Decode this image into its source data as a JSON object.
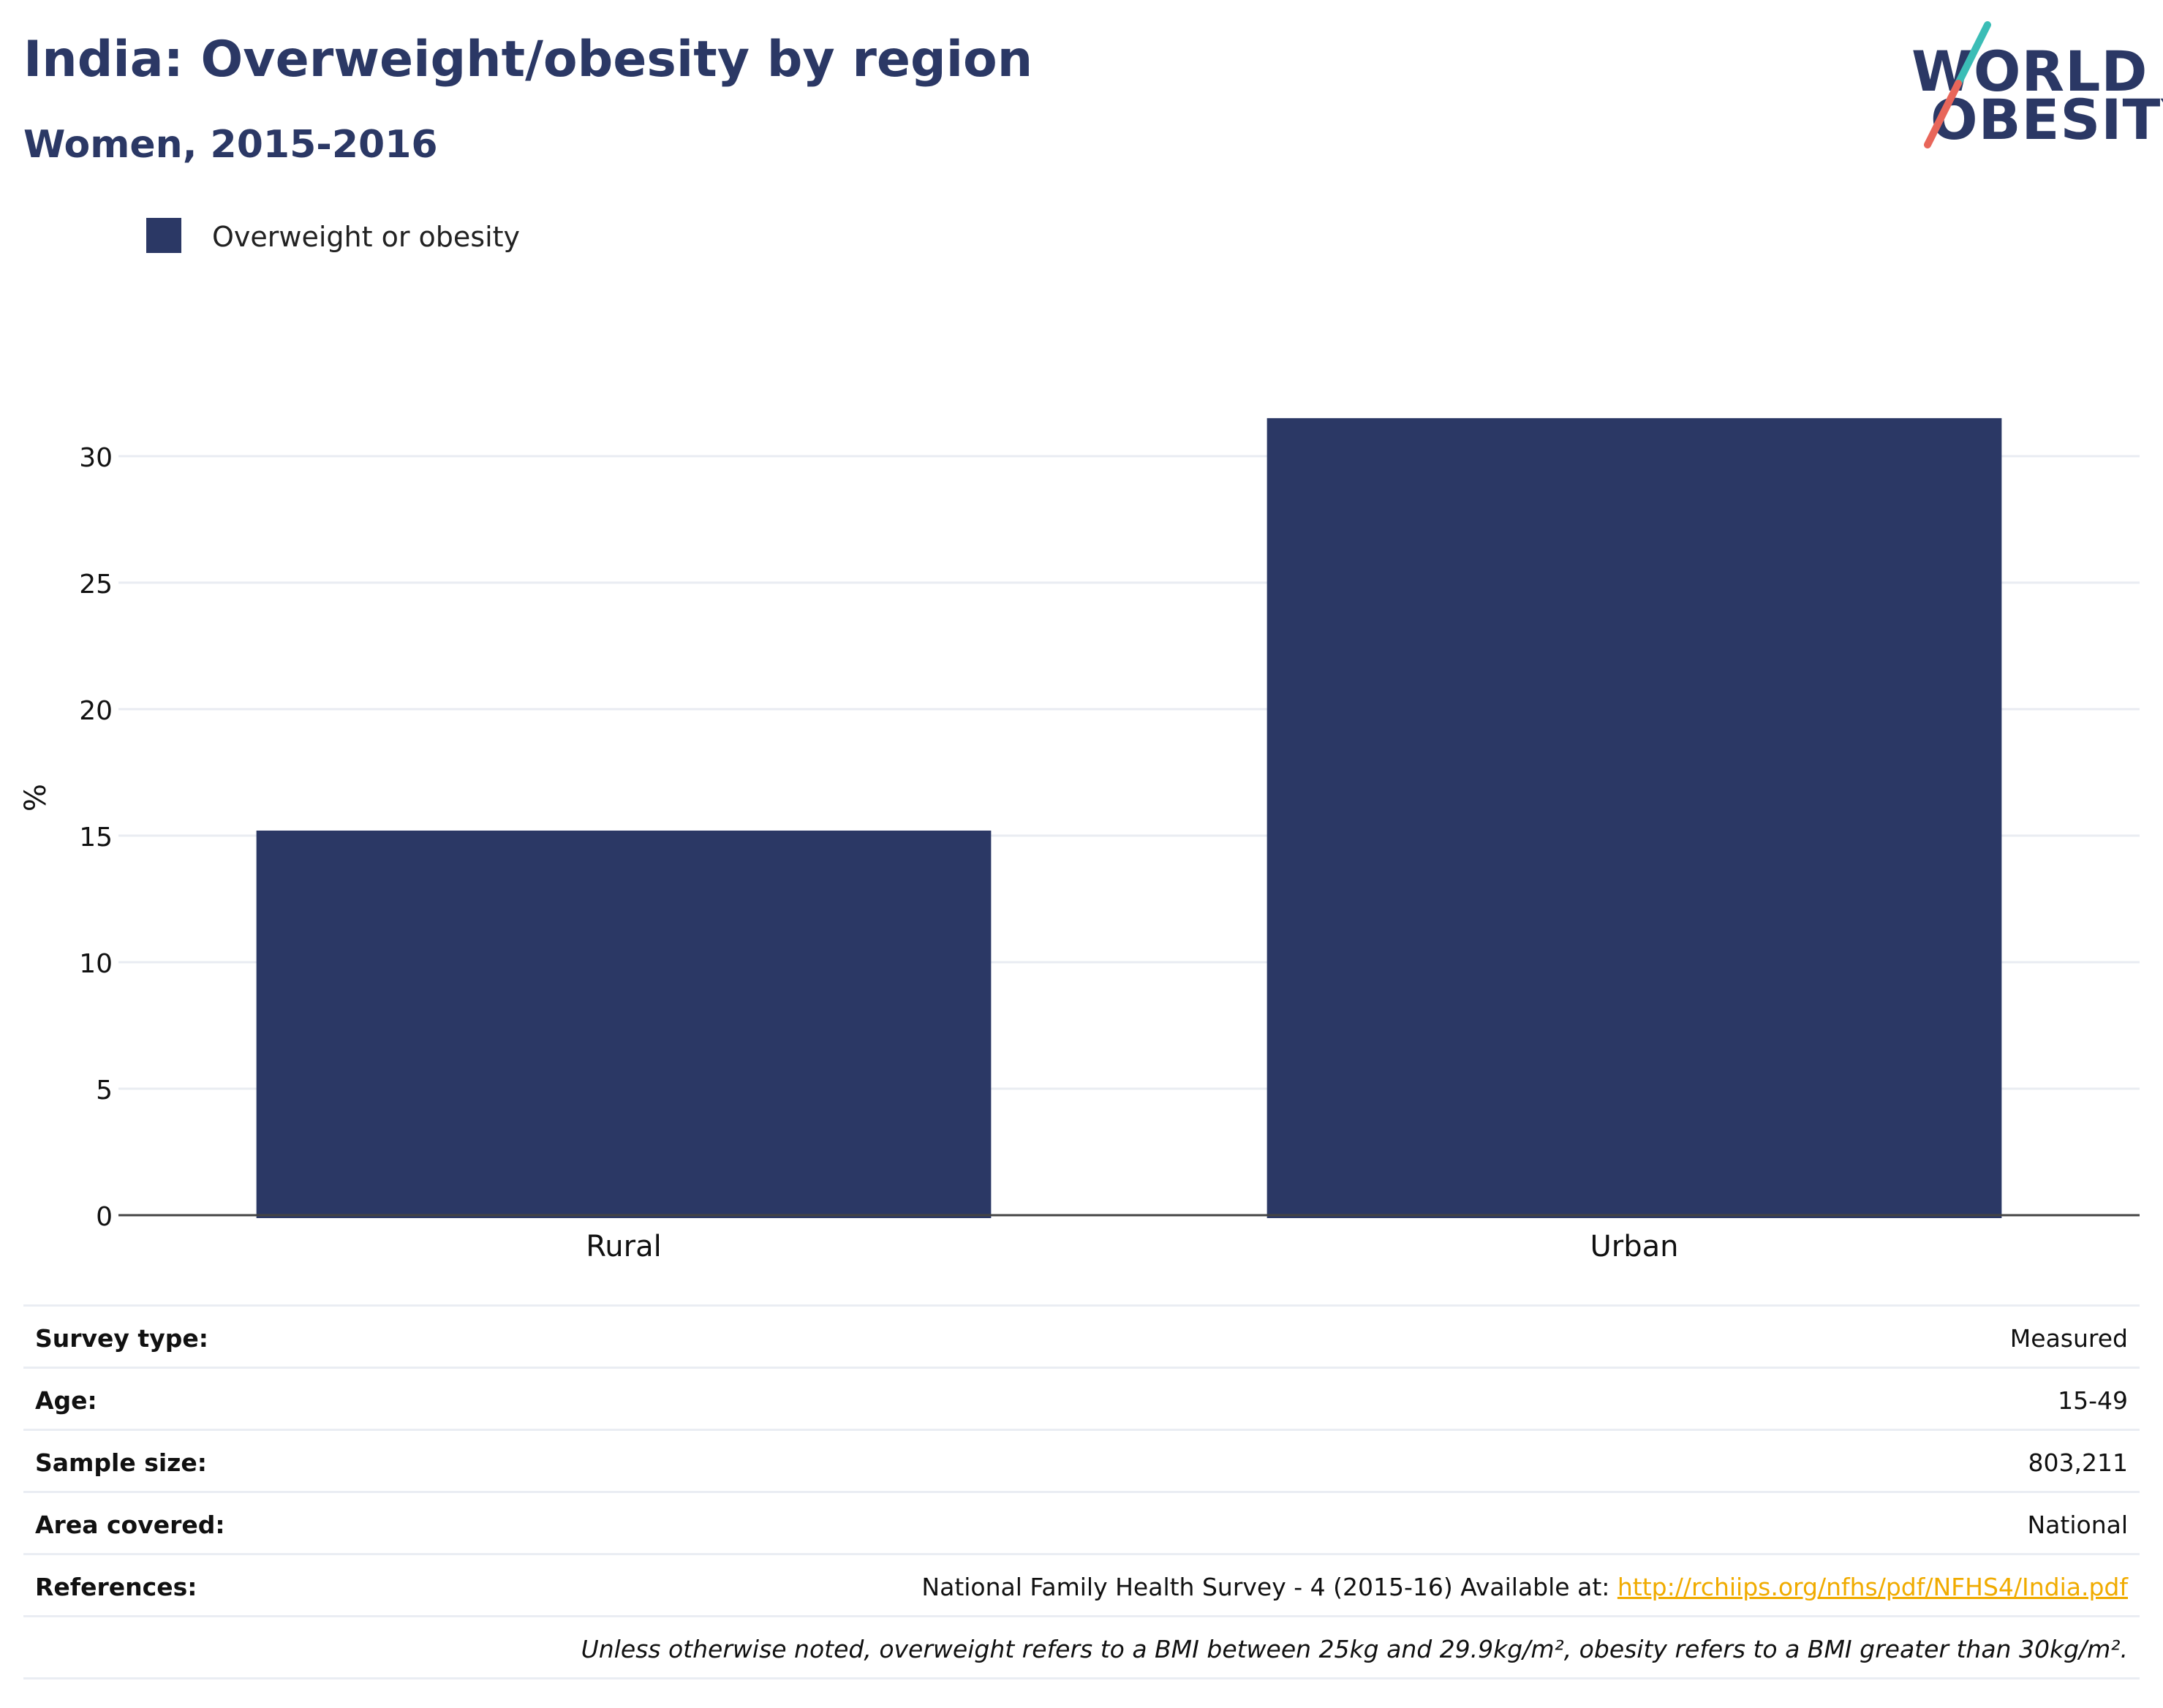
{
  "header": {
    "title": "India: Overweight/obesity by region",
    "subtitle": "Women, 2015-2016"
  },
  "logo": {
    "line1": "WORLD",
    "line2": "OBESITY",
    "colors": {
      "text": "#2b3865",
      "slash_top": "#3bbdb6",
      "slash_bottom": "#e8665a"
    }
  },
  "legend": {
    "items": [
      {
        "label": "Overweight or obesity",
        "color": "#2b3865"
      }
    ]
  },
  "chart_data": {
    "type": "bar",
    "title": "India: Overweight/obesity by region",
    "subtitle": "Women, 2015-2016",
    "categories": [
      "Rural",
      "Urban"
    ],
    "series": [
      {
        "name": "Overweight or obesity",
        "values": [
          15.2,
          31.5
        ],
        "color": "#2b3865"
      }
    ],
    "xlabel": "",
    "ylabel": "%",
    "ylim": [
      0,
      33
    ],
    "yticks": [
      0,
      5,
      10,
      15,
      20,
      25,
      30
    ],
    "grid": true,
    "legend_position": "top-left"
  },
  "info": {
    "rows": [
      {
        "label": "Survey type:",
        "value": "Measured"
      },
      {
        "label": "Age:",
        "value": "15-49"
      },
      {
        "label": "Sample size:",
        "value": "803,211"
      },
      {
        "label": "Area covered:",
        "value": "National"
      }
    ],
    "references": {
      "label": "References:",
      "text": "National Family Health Survey - 4 (2015-16) Available at: ",
      "link": "http://rchiips.org/nfhs/pdf/NFHS4/India.pdf"
    },
    "footnote": "Unless otherwise noted, overweight refers to a BMI between 25kg and 29.9kg/m², obesity refers to a BMI greater than 30kg/m²."
  }
}
